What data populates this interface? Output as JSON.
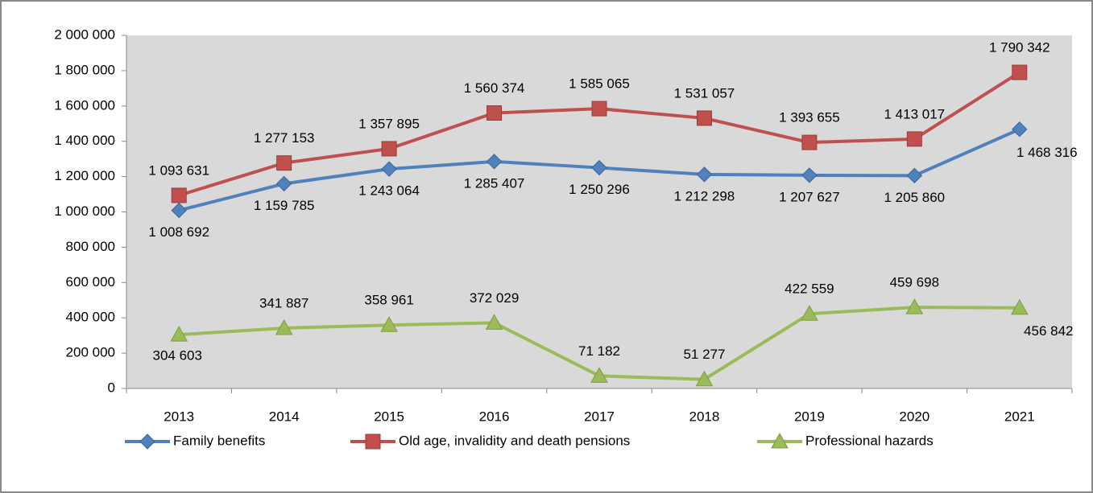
{
  "chart_data": {
    "type": "line",
    "categories": [
      "2013",
      "2014",
      "2015",
      "2016",
      "2017",
      "2018",
      "2019",
      "2020",
      "2021"
    ],
    "series": [
      {
        "name": "Family benefits",
        "color": "#4f81bd",
        "marker": "diamond",
        "values": [
          1008692,
          1159785,
          1243064,
          1285407,
          1250296,
          1212298,
          1207627,
          1205860,
          1468316
        ],
        "value_labels": [
          "1 008 692",
          "1 159 785",
          "1 243 064",
          "1 285 407",
          "1 250 296",
          "1 212 298",
          "1 207 627",
          "1 205 860",
          "1 468 316"
        ]
      },
      {
        "name": "Old age, invalidity and death pensions",
        "color": "#c0504d",
        "marker": "square",
        "values": [
          1093631,
          1277153,
          1357895,
          1560374,
          1585065,
          1531057,
          1393655,
          1413017,
          1790342
        ],
        "value_labels": [
          "1 093 631",
          "1 277 153",
          "1 357 895",
          "1 560 374",
          "1 585 065",
          "1 531 057",
          "1 393 655",
          "1 413 017",
          "1 790 342"
        ]
      },
      {
        "name": "Professional hazards",
        "color": "#9bbb59",
        "marker": "triangle",
        "values": [
          304603,
          341887,
          358961,
          372029,
          71182,
          51277,
          422559,
          459698,
          456842
        ],
        "value_labels": [
          "304 603",
          "341 887",
          "358 961",
          "372 029",
          "71 182",
          "51 277",
          "422 559",
          "459 698",
          "456 842"
        ]
      }
    ],
    "ylim": [
      0,
      2000000
    ],
    "yticks": [
      0,
      {
        "value": 200000,
        "label": "200 000"
      },
      {
        "value": 400000,
        "label": "400 000"
      },
      {
        "value": 600000,
        "label": "600 000"
      },
      {
        "value": 800000,
        "label": "800 000"
      },
      {
        "value": 1000000,
        "label": "1 000 000"
      },
      {
        "value": 1200000,
        "label": "1 200 000"
      },
      {
        "value": 1400000,
        "label": "1 400 000"
      },
      {
        "value": 1600000,
        "label": "1 600 000"
      },
      {
        "value": 1800000,
        "label": "1 800 000"
      },
      {
        "value": 2000000,
        "label": "2 000 000"
      }
    ],
    "legend": "bottom"
  }
}
